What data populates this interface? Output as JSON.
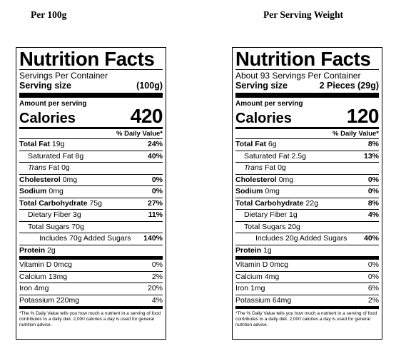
{
  "headings": {
    "left": "Per 100g",
    "right": "Per Serving Weight"
  },
  "left_label": {
    "title": "Nutrition Facts",
    "servings": "Servings Per Container",
    "serving_size_label": "Serving size",
    "serving_size_value": "(100g)",
    "amount_per_serving": "Amount per serving",
    "calories_label": "Calories",
    "calories_value": "420",
    "dv_header": "% Daily Value*",
    "total_fat": {
      "label": "Total Fat",
      "amount": "19g",
      "dv": "24%"
    },
    "sat_fat": {
      "label": "Saturated Fat 8g",
      "dv": "40%"
    },
    "trans_fat": {
      "label": "Trans",
      "amount": "Fat 0g"
    },
    "cholesterol": {
      "label": "Cholesterol",
      "amount": "0mg",
      "dv": "0%"
    },
    "sodium": {
      "label": "Sodium",
      "amount": "0mg",
      "dv": "0%"
    },
    "total_carb": {
      "label": "Total Carbohydrate",
      "amount": "75g",
      "dv": "27%"
    },
    "fiber": {
      "label": "Dietary Fiber 3g",
      "dv": "11%"
    },
    "total_sugars": {
      "label": "Total Sugars 70g"
    },
    "added_sugars": {
      "label": "Includes 70g Added Sugars",
      "dv": "140%"
    },
    "protein": {
      "label": "Protein",
      "amount": "2g"
    },
    "vitamin_d": {
      "label": "Vitamin D 0mcg",
      "dv": "0%"
    },
    "calcium": {
      "label": "Calcium 13mg",
      "dv": "2%"
    },
    "iron": {
      "label": "Iron 4mg",
      "dv": "20%"
    },
    "potassium": {
      "label": "Potassium 220mg",
      "dv": "4%"
    },
    "footnote": "*The % Daily Value tells you how much a nutrient in a serving of food contributes to a daily diet. 2,000 calories a day is used for general nutrition advice."
  },
  "right_label": {
    "title": "Nutrition Facts",
    "servings": "About 93 Servings Per Container",
    "serving_size_label": "Serving size",
    "serving_size_value": "2 Pieces (29g)",
    "amount_per_serving": "Amount per serving",
    "calories_label": "Calories",
    "calories_value": "120",
    "dv_header": "% Daily Value*",
    "total_fat": {
      "label": "Total Fat",
      "amount": "6g",
      "dv": "8%"
    },
    "sat_fat": {
      "label": "Saturated Fat 2.5g",
      "dv": "13%"
    },
    "trans_fat": {
      "label": "Trans",
      "amount": "Fat 0g"
    },
    "cholesterol": {
      "label": "Cholesterol",
      "amount": "0mg",
      "dv": "0%"
    },
    "sodium": {
      "label": "Sodium",
      "amount": "0mg",
      "dv": "0%"
    },
    "total_carb": {
      "label": "Total Carbohydrate",
      "amount": "22g",
      "dv": "8%"
    },
    "fiber": {
      "label": "Dietary Fiber 1g",
      "dv": "4%"
    },
    "total_sugars": {
      "label": "Total Sugars 20g"
    },
    "added_sugars": {
      "label": "Includes 20g Added Sugars",
      "dv": "40%"
    },
    "protein": {
      "label": "Protein",
      "amount": "1g"
    },
    "vitamin_d": {
      "label": "Vitamin D 0mcg",
      "dv": "0%"
    },
    "calcium": {
      "label": "Calcium 4mg",
      "dv": "0%"
    },
    "iron": {
      "label": "Iron 1mg",
      "dv": "6%"
    },
    "potassium": {
      "label": "Potassium 64mg",
      "dv": "2%"
    },
    "footnote": "*The % Daily Value tells you how much a nutrient in a serving of food contributes to a daily diet. 2,000 calories a day is used for general nutrition advice."
  }
}
